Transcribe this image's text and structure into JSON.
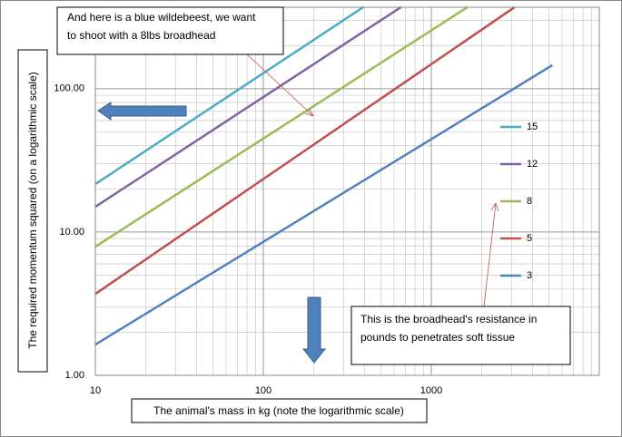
{
  "chart_data": {
    "type": "line",
    "xlabel": "The animal's mass in kg (note the logarithmic scale)",
    "ylabel": "The required momentum squared (on a logarithmic scale)",
    "xscale": "log",
    "yscale": "log",
    "xlim": [
      10,
      10000
    ],
    "ylim": [
      1,
      370
    ],
    "xticks": [
      10,
      100,
      1000
    ],
    "yticks": [
      {
        "value": 1,
        "label": "1.00"
      },
      {
        "value": 10,
        "label": "10.00"
      },
      {
        "value": 100,
        "label": "100.00"
      }
    ],
    "grid": true,
    "legend": "right",
    "series": [
      {
        "name": "15",
        "color": "#4bacc6",
        "x": [
          10,
          394
        ],
        "values": [
          21.6,
          371
        ]
      },
      {
        "name": "12",
        "color": "#8064a2",
        "x": [
          10,
          661
        ],
        "values": [
          15.0,
          371
        ]
      },
      {
        "name": "8",
        "color": "#9bbb59",
        "x": [
          10,
          1644
        ],
        "values": [
          7.9,
          371
        ]
      },
      {
        "name": "5",
        "color": "#c0504d",
        "x": [
          10,
          3140
        ],
        "values": [
          3.7,
          371
        ]
      },
      {
        "name": "3",
        "color": "#4f81bd",
        "x": [
          10,
          5260
        ],
        "values": [
          1.64,
          146
        ]
      }
    ],
    "annotations": [
      {
        "lines": [
          "And here is a blue wildebeest, we want",
          "to shoot with a 8lbs broadhead"
        ]
      },
      {
        "lines": [
          "This is the broadhead's resistance in",
          "pounds to penetrates soft tissue"
        ]
      }
    ]
  }
}
